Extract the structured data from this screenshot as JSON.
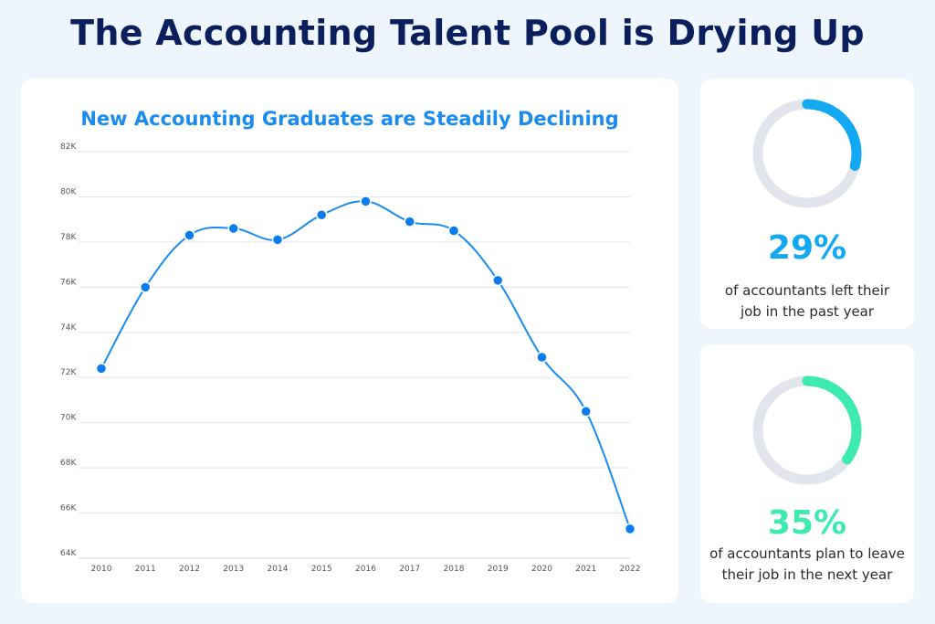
{
  "title": "The Accounting Talent Pool is Drying Up",
  "chart_data": {
    "type": "line",
    "title": "New Accounting Graduates are Steadily Declining",
    "xlabel": "",
    "ylabel": "",
    "categories": [
      "2010",
      "2011",
      "2012",
      "2013",
      "2014",
      "2015",
      "2016",
      "2017",
      "2018",
      "2019",
      "2020",
      "2021",
      "2022"
    ],
    "values": [
      72.4,
      76.0,
      78.3,
      78.6,
      78.1,
      79.2,
      79.8,
      78.9,
      78.5,
      76.3,
      72.9,
      70.5,
      65.3
    ],
    "ylim": [
      64,
      82
    ],
    "yticks": [
      "64K",
      "66K",
      "68K",
      "70K",
      "72K",
      "74K",
      "76K",
      "78K",
      "80K",
      "82K"
    ],
    "grid": true,
    "line_color": "#1a8cf0"
  },
  "stats": [
    {
      "percent": 29,
      "value_text": "29%",
      "description": "of accountants left their job in the past year",
      "line1": "of accountants left their",
      "line2": "job in the past year",
      "color": "#12a9f2"
    },
    {
      "percent": 35,
      "value_text": "35%",
      "description": "of accountants plan to leave their job in the next year",
      "line1": "of accountants plan to leave",
      "line2": "their job in the next year",
      "color": "#3deab0"
    }
  ]
}
